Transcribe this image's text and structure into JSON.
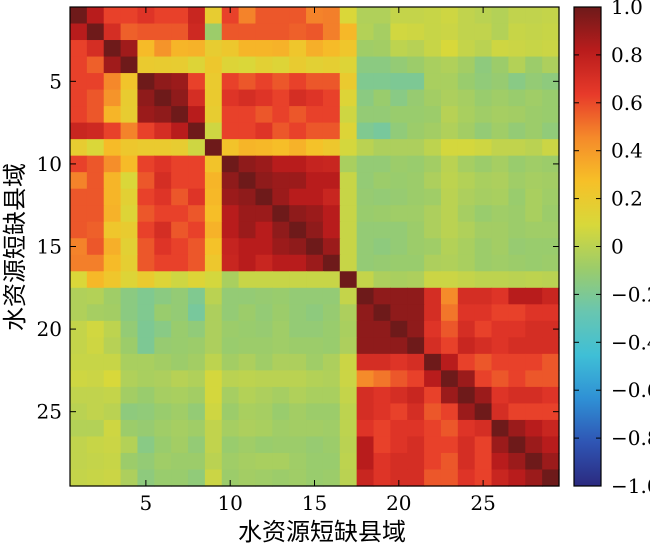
{
  "chart_data": {
    "type": "heatmap",
    "title": "",
    "xlabel": "水资源短缺县域",
    "ylabel": "水资源短缺县域",
    "n": 29,
    "x_ticks": [
      5,
      10,
      15,
      20,
      25
    ],
    "y_ticks": [
      5,
      10,
      15,
      20,
      25
    ],
    "colorbar": {
      "min": -1.0,
      "max": 1.0,
      "ticks": [
        1.0,
        0.8,
        0.6,
        0.4,
        0.2,
        0,
        -0.2,
        -0.4,
        -0.6,
        -0.8,
        -1.0
      ],
      "tick_labels": [
        "1.0",
        "0.8",
        "0.6",
        "0.4",
        "0.2",
        "0",
        "−0.2",
        "−0.4",
        "−0.6",
        "−0.8",
        "−1.0"
      ],
      "colormap": [
        "#2b2a7f",
        "#2f55b4",
        "#2f90d5",
        "#3fbfd6",
        "#69c6b0",
        "#9ccc6a",
        "#d8d83a",
        "#f6c028",
        "#f58a2a",
        "#e73a2a",
        "#b91c1c",
        "#6e1a1a"
      ]
    },
    "values": [
      [
        1.0,
        0.82,
        0.62,
        0.62,
        0.67,
        0.62,
        0.62,
        0.76,
        0.18,
        0.62,
        0.47,
        0.57,
        0.57,
        0.57,
        0.47,
        0.48,
        0.1,
        -0.03,
        -0.03,
        0.03,
        0.03,
        0.04,
        0.06,
        0.02,
        0.0,
        -0.02,
        0.02,
        0.02,
        0.03
      ],
      [
        0.82,
        1.0,
        0.71,
        0.55,
        0.57,
        0.57,
        0.57,
        0.74,
        -0.09,
        0.57,
        0.57,
        0.57,
        0.57,
        0.55,
        0.57,
        0.48,
        0.3,
        -0.02,
        -0.06,
        0.07,
        0.06,
        0.04,
        0.05,
        0.02,
        0.02,
        -0.02,
        0.04,
        0.03,
        0.04
      ],
      [
        0.62,
        0.71,
        1.0,
        0.88,
        0.29,
        0.42,
        0.31,
        0.32,
        0.18,
        0.22,
        0.31,
        0.31,
        0.32,
        0.23,
        0.33,
        0.29,
        0.23,
        -0.08,
        -0.07,
        0.01,
        -0.01,
        0.04,
        0.09,
        0.03,
        0.0,
        0.06,
        0.05,
        0.04,
        0.05
      ],
      [
        0.62,
        0.55,
        0.88,
        1.0,
        0.2,
        0.19,
        0.18,
        0.12,
        0.22,
        0.12,
        0.1,
        0.15,
        0.12,
        0.19,
        0.15,
        0.17,
        0.12,
        -0.15,
        -0.15,
        -0.12,
        -0.09,
        -0.05,
        -0.03,
        -0.07,
        -0.14,
        -0.09,
        -0.02,
        -0.09,
        -0.04
      ],
      [
        0.62,
        0.62,
        0.46,
        0.24,
        1.0,
        0.92,
        0.89,
        0.62,
        0.2,
        0.62,
        0.57,
        0.62,
        0.57,
        0.62,
        0.57,
        0.57,
        0.2,
        -0.19,
        -0.19,
        -0.2,
        -0.2,
        -0.05,
        -0.05,
        -0.1,
        -0.13,
        -0.11,
        -0.16,
        -0.12,
        -0.14
      ],
      [
        0.62,
        0.57,
        0.42,
        0.19,
        0.92,
        1.0,
        0.92,
        0.71,
        0.2,
        0.67,
        0.71,
        0.67,
        0.62,
        0.71,
        0.67,
        0.62,
        0.12,
        -0.15,
        -0.1,
        -0.16,
        -0.11,
        -0.07,
        -0.04,
        -0.06,
        -0.1,
        -0.08,
        -0.1,
        -0.08,
        -0.1
      ],
      [
        0.62,
        0.57,
        0.31,
        0.18,
        0.89,
        0.92,
        1.0,
        0.82,
        0.18,
        0.62,
        0.62,
        0.57,
        0.62,
        0.57,
        0.62,
        0.62,
        0.06,
        -0.12,
        -0.12,
        -0.1,
        -0.1,
        -0.09,
        -0.01,
        -0.05,
        -0.08,
        -0.06,
        -0.07,
        -0.09,
        -0.1
      ],
      [
        0.76,
        0.74,
        0.62,
        0.47,
        0.62,
        0.71,
        0.82,
        1.0,
        0.06,
        0.62,
        0.62,
        0.67,
        0.57,
        0.62,
        0.57,
        0.57,
        0.12,
        -0.19,
        -0.22,
        -0.13,
        -0.09,
        -0.07,
        -0.03,
        -0.07,
        -0.12,
        -0.08,
        -0.12,
        -0.09,
        -0.13
      ],
      [
        0.18,
        0.1,
        0.29,
        0.22,
        0.2,
        0.2,
        0.18,
        0.06,
        1.0,
        0.25,
        0.31,
        0.3,
        0.28,
        0.32,
        0.26,
        0.22,
        0.08,
        0.0,
        -0.04,
        -0.04,
        -0.04,
        0.01,
        0.08,
        0.08,
        0.06,
        0.02,
        0.02,
        0.0,
        0.05
      ],
      [
        0.62,
        0.57,
        0.44,
        0.29,
        0.62,
        0.67,
        0.62,
        0.62,
        0.25,
        1.0,
        0.92,
        0.89,
        0.82,
        0.82,
        0.77,
        0.76,
        -0.05,
        -0.12,
        -0.12,
        -0.09,
        -0.1,
        -0.07,
        0.0,
        -0.06,
        -0.09,
        -0.06,
        -0.1,
        -0.08,
        -0.09
      ],
      [
        0.47,
        0.57,
        0.31,
        0.1,
        0.57,
        0.71,
        0.62,
        0.62,
        0.31,
        0.92,
        1.0,
        0.92,
        0.89,
        0.89,
        0.82,
        0.82,
        0.04,
        -0.12,
        -0.09,
        -0.1,
        -0.09,
        -0.04,
        0.01,
        -0.02,
        -0.05,
        -0.04,
        -0.08,
        -0.06,
        -0.07
      ],
      [
        0.57,
        0.57,
        0.31,
        0.15,
        0.62,
        0.67,
        0.57,
        0.67,
        0.3,
        0.89,
        0.92,
        1.0,
        0.89,
        0.82,
        0.82,
        0.76,
        0.04,
        -0.11,
        -0.12,
        -0.11,
        -0.09,
        -0.08,
        0.0,
        -0.04,
        -0.06,
        -0.05,
        -0.1,
        -0.05,
        -0.08
      ],
      [
        0.57,
        0.57,
        0.32,
        0.12,
        0.57,
        0.62,
        0.62,
        0.57,
        0.28,
        0.82,
        0.89,
        0.89,
        1.0,
        0.92,
        0.89,
        0.82,
        0.04,
        -0.1,
        -0.09,
        -0.08,
        -0.08,
        -0.04,
        0.0,
        -0.06,
        -0.1,
        -0.08,
        -0.09,
        -0.05,
        -0.09
      ],
      [
        0.57,
        0.55,
        0.23,
        0.19,
        0.62,
        0.71,
        0.57,
        0.62,
        0.32,
        0.82,
        0.89,
        0.82,
        0.92,
        1.0,
        0.92,
        0.82,
        0.04,
        -0.12,
        -0.12,
        -0.12,
        -0.09,
        -0.04,
        0.0,
        -0.03,
        -0.07,
        -0.07,
        -0.09,
        -0.08,
        -0.08
      ],
      [
        0.47,
        0.57,
        0.33,
        0.15,
        0.57,
        0.67,
        0.62,
        0.57,
        0.26,
        0.77,
        0.82,
        0.82,
        0.89,
        0.92,
        1.0,
        0.89,
        0.04,
        -0.12,
        -0.14,
        -0.12,
        -0.09,
        -0.08,
        -0.02,
        -0.05,
        -0.09,
        -0.07,
        -0.11,
        -0.1,
        -0.1
      ],
      [
        0.48,
        0.48,
        0.29,
        0.17,
        0.57,
        0.62,
        0.62,
        0.57,
        0.22,
        0.76,
        0.82,
        0.76,
        0.82,
        0.82,
        0.89,
        1.0,
        0.04,
        -0.12,
        -0.11,
        -0.1,
        -0.1,
        -0.04,
        -0.03,
        -0.05,
        -0.09,
        -0.08,
        -0.09,
        -0.1,
        -0.09
      ],
      [
        0.1,
        0.3,
        0.23,
        0.12,
        0.2,
        0.12,
        0.06,
        0.12,
        0.08,
        -0.05,
        0.04,
        0.04,
        0.04,
        0.04,
        0.04,
        0.04,
        1.0,
        0.03,
        -0.04,
        -0.05,
        -0.04,
        0.05,
        0.05,
        0.03,
        0.01,
        0.01,
        0.0,
        0.01,
        0.0
      ],
      [
        -0.03,
        -0.02,
        -0.08,
        -0.15,
        -0.19,
        -0.15,
        -0.12,
        -0.19,
        0.0,
        -0.12,
        -0.12,
        -0.11,
        -0.1,
        -0.12,
        -0.12,
        -0.12,
        0.03,
        1.0,
        0.92,
        0.92,
        0.92,
        0.71,
        0.45,
        0.71,
        0.71,
        0.67,
        0.82,
        0.82,
        0.76
      ],
      [
        -0.03,
        -0.06,
        -0.07,
        -0.15,
        -0.19,
        -0.1,
        -0.12,
        -0.22,
        -0.04,
        -0.12,
        -0.09,
        -0.12,
        -0.09,
        -0.12,
        -0.14,
        -0.11,
        -0.04,
        0.92,
        1.0,
        0.92,
        0.92,
        0.71,
        0.5,
        0.67,
        0.67,
        0.62,
        0.62,
        0.67,
        0.67
      ],
      [
        0.03,
        0.07,
        0.01,
        -0.12,
        -0.2,
        -0.16,
        -0.1,
        -0.13,
        -0.04,
        -0.09,
        -0.1,
        -0.11,
        -0.08,
        -0.12,
        -0.12,
        -0.1,
        -0.05,
        0.92,
        0.92,
        1.0,
        0.92,
        0.67,
        0.57,
        0.71,
        0.62,
        0.67,
        0.67,
        0.71,
        0.71
      ],
      [
        0.03,
        0.06,
        -0.01,
        -0.09,
        -0.2,
        -0.11,
        -0.1,
        -0.09,
        -0.04,
        -0.1,
        -0.09,
        -0.09,
        -0.08,
        -0.09,
        -0.09,
        -0.1,
        -0.04,
        0.92,
        0.92,
        0.92,
        1.0,
        0.71,
        0.62,
        0.76,
        0.71,
        0.67,
        0.71,
        0.71,
        0.71
      ],
      [
        0.04,
        0.04,
        0.04,
        -0.05,
        -0.05,
        -0.07,
        -0.09,
        -0.07,
        0.01,
        -0.07,
        -0.04,
        -0.08,
        -0.04,
        -0.04,
        -0.08,
        -0.04,
        0.05,
        0.71,
        0.71,
        0.67,
        0.71,
        1.0,
        0.82,
        0.62,
        0.57,
        0.62,
        0.62,
        0.62,
        0.57
      ],
      [
        0.06,
        0.05,
        0.09,
        -0.03,
        -0.05,
        -0.04,
        -0.01,
        -0.03,
        0.08,
        0.0,
        0.01,
        0.0,
        0.0,
        0.0,
        -0.02,
        -0.03,
        0.05,
        0.45,
        0.5,
        0.57,
        0.62,
        0.82,
        1.0,
        0.89,
        0.62,
        0.57,
        0.62,
        0.57,
        0.57
      ],
      [
        0.02,
        0.02,
        0.03,
        -0.07,
        -0.1,
        -0.06,
        -0.05,
        -0.07,
        0.08,
        -0.06,
        -0.02,
        -0.04,
        -0.06,
        -0.03,
        -0.05,
        -0.05,
        0.03,
        0.71,
        0.67,
        0.71,
        0.76,
        0.62,
        0.89,
        1.0,
        0.89,
        0.67,
        0.71,
        0.71,
        0.67
      ],
      [
        0.0,
        0.02,
        0.0,
        -0.14,
        -0.13,
        -0.1,
        -0.08,
        -0.12,
        0.06,
        -0.09,
        -0.05,
        -0.06,
        -0.1,
        -0.07,
        -0.09,
        -0.09,
        0.01,
        0.71,
        0.67,
        0.62,
        0.71,
        0.57,
        0.62,
        0.89,
        1.0,
        0.71,
        0.62,
        0.62,
        0.62
      ],
      [
        -0.02,
        -0.02,
        0.06,
        -0.09,
        -0.11,
        -0.08,
        -0.06,
        -0.08,
        0.02,
        -0.06,
        -0.04,
        -0.05,
        -0.08,
        -0.07,
        -0.07,
        -0.08,
        0.01,
        0.67,
        0.62,
        0.67,
        0.67,
        0.62,
        0.57,
        0.67,
        0.71,
        1.0,
        0.89,
        0.82,
        0.76
      ],
      [
        0.02,
        0.04,
        0.05,
        -0.02,
        -0.16,
        -0.1,
        -0.07,
        -0.12,
        0.02,
        -0.1,
        -0.08,
        -0.1,
        -0.09,
        -0.09,
        -0.11,
        -0.09,
        0.0,
        0.82,
        0.62,
        0.67,
        0.71,
        0.62,
        0.62,
        0.71,
        0.62,
        0.89,
        1.0,
        0.89,
        0.82
      ],
      [
        0.02,
        0.03,
        0.04,
        -0.09,
        -0.12,
        -0.08,
        -0.09,
        -0.09,
        0.0,
        -0.08,
        -0.06,
        -0.05,
        -0.05,
        -0.08,
        -0.1,
        -0.1,
        0.01,
        0.82,
        0.67,
        0.71,
        0.71,
        0.62,
        0.57,
        0.71,
        0.62,
        0.82,
        0.89,
        1.0,
        0.89
      ],
      [
        0.03,
        0.04,
        0.05,
        -0.04,
        -0.14,
        -0.1,
        -0.1,
        -0.13,
        0.05,
        -0.09,
        -0.07,
        -0.08,
        -0.09,
        -0.08,
        -0.1,
        -0.09,
        0.0,
        0.76,
        0.67,
        0.71,
        0.71,
        0.57,
        0.57,
        0.67,
        0.62,
        0.76,
        0.82,
        0.89,
        1.0
      ]
    ]
  }
}
